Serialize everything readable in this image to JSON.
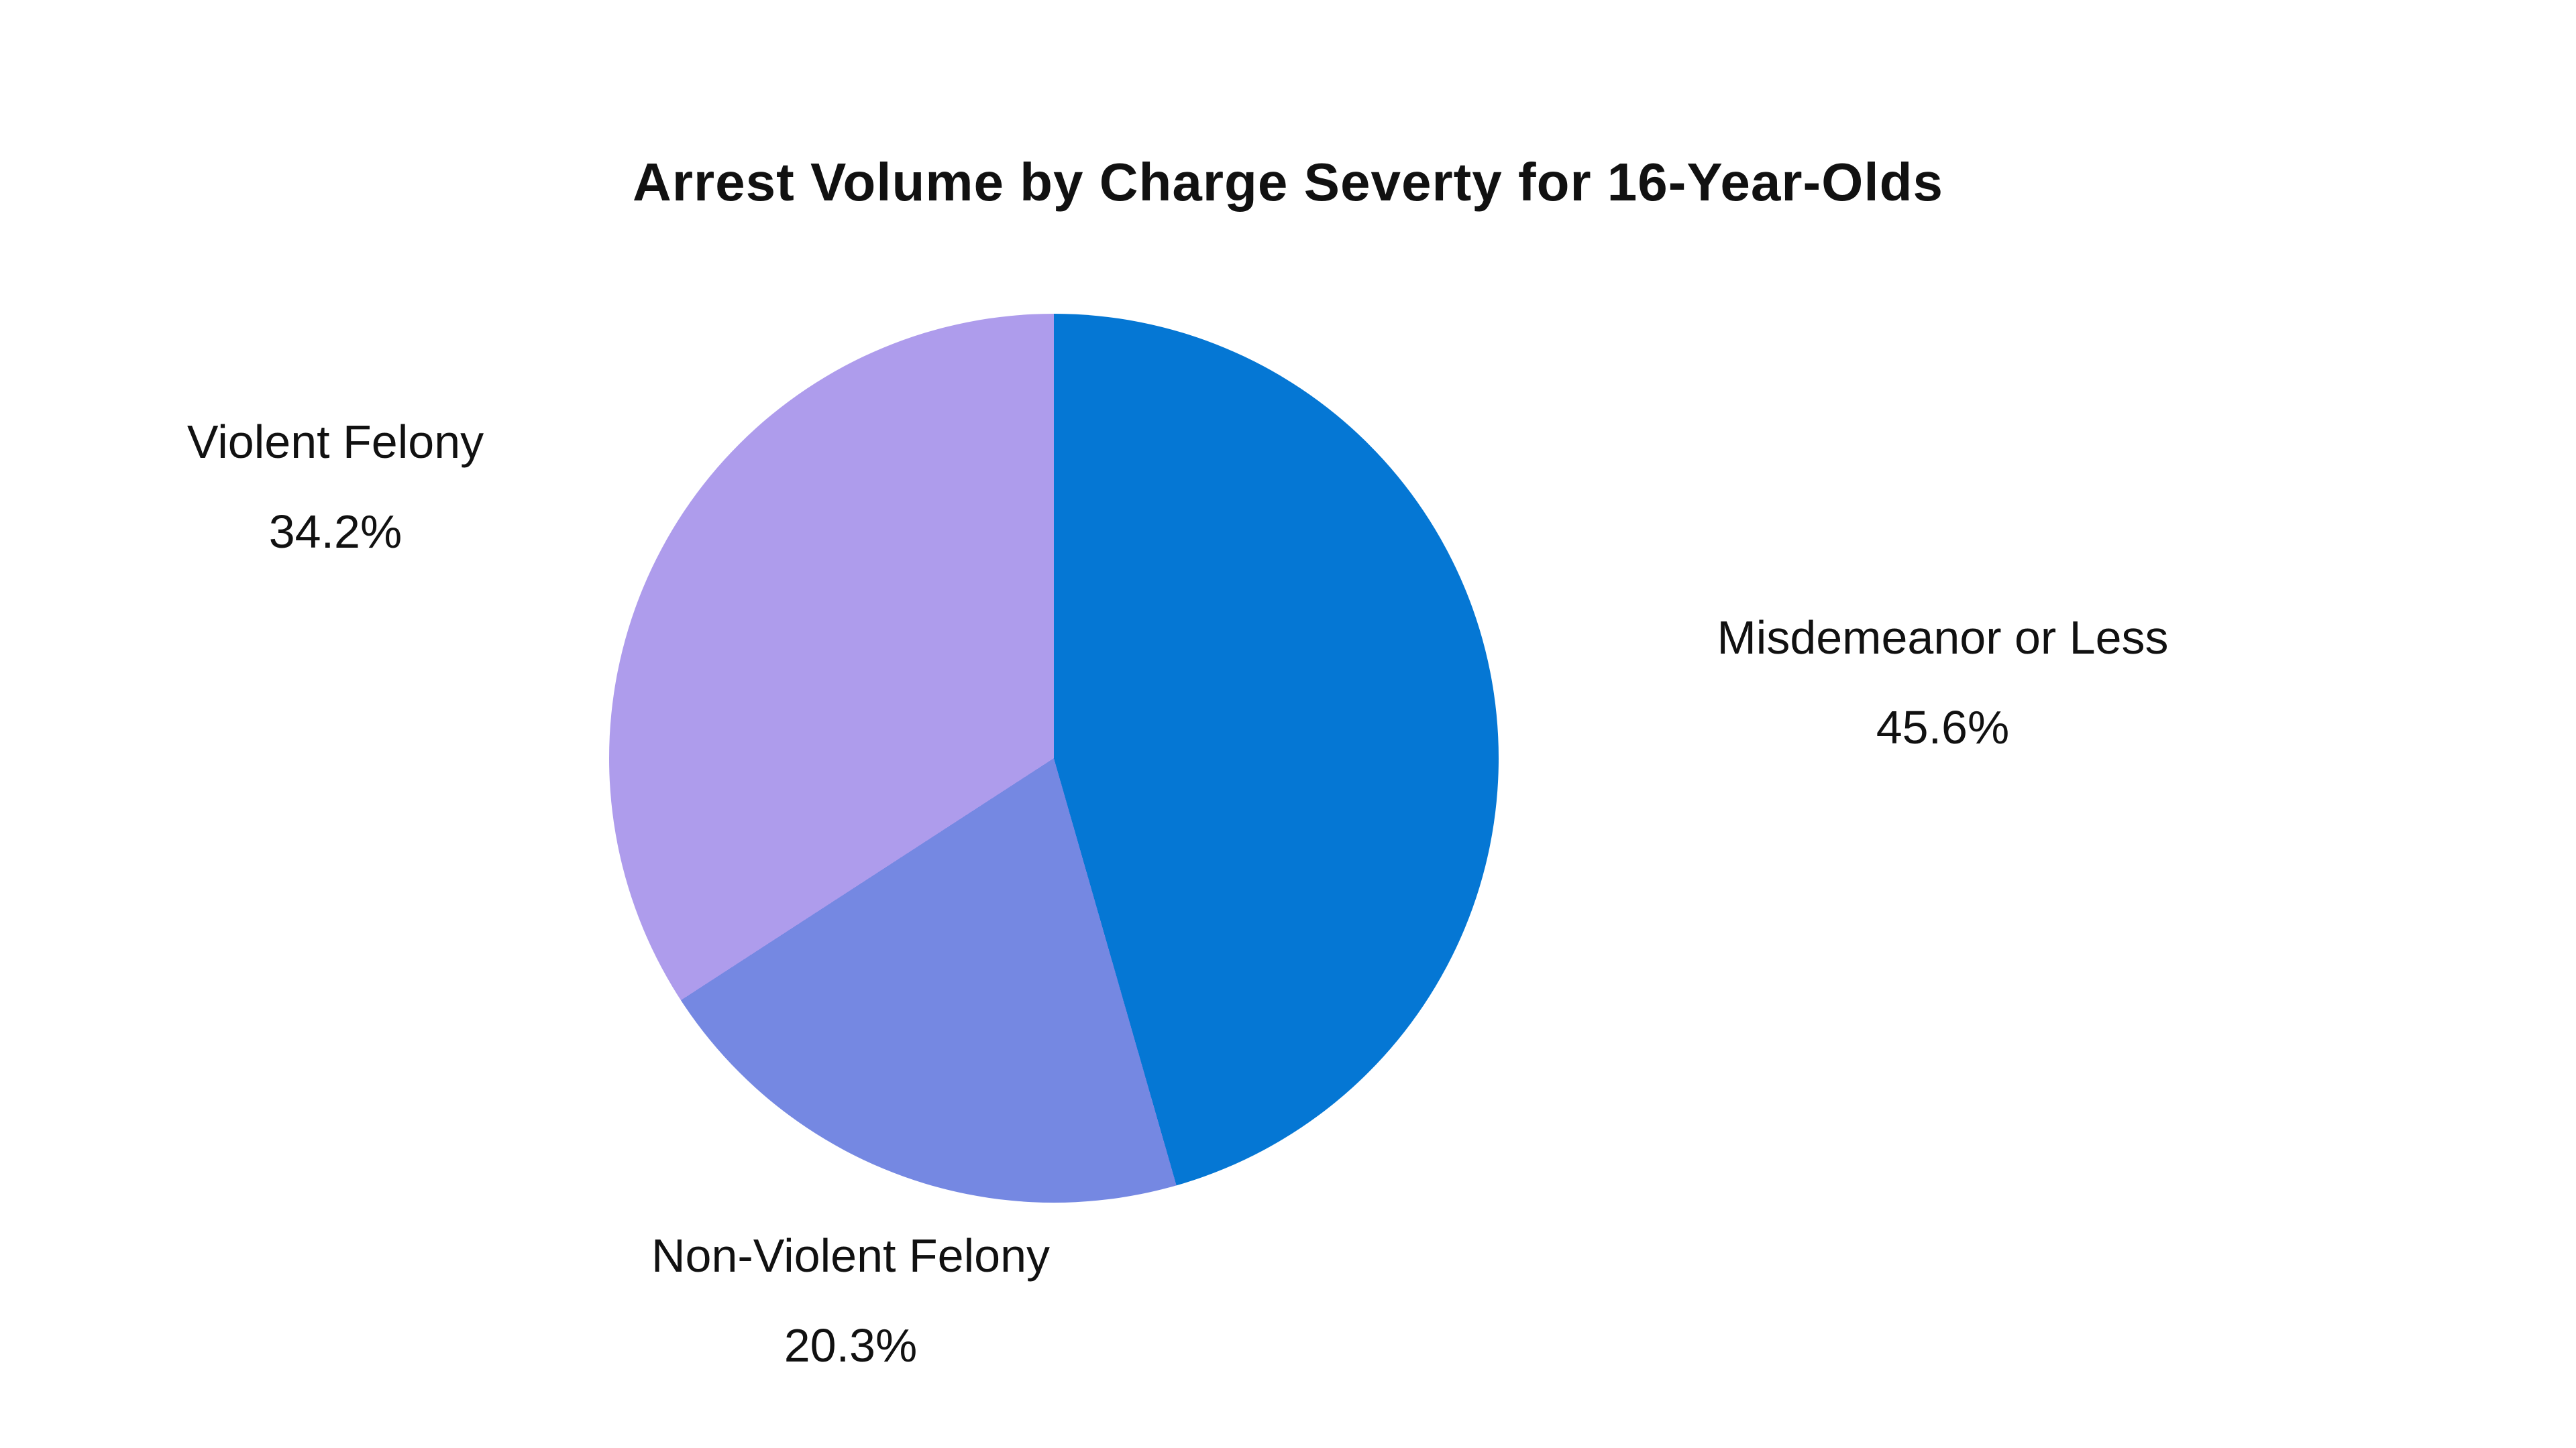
{
  "chart_data": {
    "type": "pie",
    "title": "Arrest Volume by Charge Severty for 16-Year-Olds",
    "background": "#ffffff",
    "text_color": "#111111",
    "start_angle_deg": 0,
    "direction": "clockwise",
    "legend_position": "none",
    "labels_style": "outside, name over percentage",
    "slices": [
      {
        "label": "Misdemeanor or Less",
        "value_pct": 45.6,
        "display": "45.6%",
        "color": "#0577d4",
        "label_side": "right"
      },
      {
        "label": "Non-Violent Felony",
        "value_pct": 20.3,
        "display": "20.3%",
        "color": "#7588e2",
        "label_side": "bottom"
      },
      {
        "label": "Violent Felony",
        "value_pct": 34.2,
        "display": "34.2%",
        "color": "#ae9cec",
        "label_side": "upper-left"
      }
    ]
  }
}
